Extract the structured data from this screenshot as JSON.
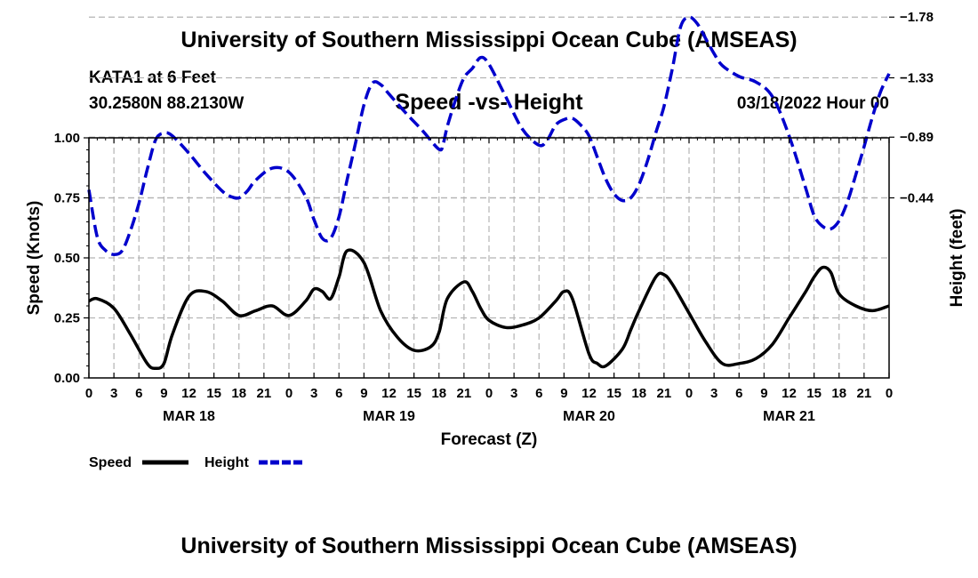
{
  "header": {
    "title_top": "University of Southern Mississippi Ocean Cube (AMSEAS)",
    "title_bottom": "University of Southern Mississippi Ocean Cube (AMSEAS)",
    "station": "KATA1 at 6 Feet",
    "coords": "30.2580N  88.2130W",
    "chart_title": "Speed -vs- Height",
    "date": "03/18/2022 Hour 00"
  },
  "chart_data": {
    "type": "line",
    "title": "Speed -vs- Height",
    "xlabel": "Forecast (Z)",
    "ylabel": "Speed (Knots)",
    "y2label": "Height (feet)",
    "x_range_hours": [
      0,
      96
    ],
    "x_tick_labels": [
      "0",
      "3",
      "6",
      "9",
      "12",
      "15",
      "18",
      "21",
      "0",
      "3",
      "6",
      "9",
      "12",
      "15",
      "18",
      "21",
      "0",
      "3",
      "6",
      "9",
      "12",
      "15",
      "18",
      "21",
      "0",
      "3",
      "6",
      "9",
      "12",
      "15",
      "18",
      "21",
      "0"
    ],
    "day_labels": [
      {
        "hour": 12,
        "label": "MAR 18"
      },
      {
        "hour": 36,
        "label": "MAR 19"
      },
      {
        "hour": 60,
        "label": "MAR 20"
      },
      {
        "hour": 84,
        "label": "MAR 21"
      }
    ],
    "ylim": [
      0,
      1.0
    ],
    "y_ticks": [
      "0.00",
      "0.25",
      "0.50",
      "0.75",
      "1.00"
    ],
    "y_tick_values": [
      0,
      0.25,
      0.5,
      0.75,
      1.0
    ],
    "y2_ticks": [
      {
        "value": -0.44,
        "label": "-0.44"
      },
      {
        "value": -0.89,
        "label": "-0.89"
      },
      {
        "value": -1.33,
        "label": "-1.33"
      },
      {
        "value": -1.78,
        "label": "-1.78"
      }
    ],
    "y2_map": {
      "speed_at_y2_minus_0_44": 0.75,
      "speed_per_foot": -0.5618
    },
    "grid": true,
    "legend": {
      "position": "bottom-left",
      "items": [
        "Speed",
        "Height"
      ]
    },
    "series": [
      {
        "name": "Speed",
        "axis": "left",
        "color": "#000000",
        "dash": "solid",
        "x": [
          0,
          1,
          3,
          5,
          7,
          8,
          9,
          10,
          12,
          14,
          16,
          18,
          20,
          22,
          24,
          26,
          27,
          28,
          29,
          30,
          31,
          33,
          35,
          37,
          39,
          41,
          42,
          43,
          45,
          46,
          47,
          48,
          50,
          52,
          54,
          56,
          57,
          58,
          60,
          61,
          62,
          64,
          65,
          66,
          68,
          69,
          70,
          72,
          74,
          76,
          78,
          80,
          82,
          84,
          86,
          87,
          88,
          89,
          90,
          92,
          94,
          96
        ],
        "values": [
          0.32,
          0.33,
          0.29,
          0.18,
          0.06,
          0.04,
          0.06,
          0.18,
          0.34,
          0.36,
          0.32,
          0.26,
          0.28,
          0.3,
          0.26,
          0.32,
          0.37,
          0.36,
          0.33,
          0.42,
          0.53,
          0.48,
          0.28,
          0.17,
          0.115,
          0.13,
          0.19,
          0.33,
          0.4,
          0.36,
          0.29,
          0.24,
          0.21,
          0.22,
          0.25,
          0.32,
          0.36,
          0.33,
          0.1,
          0.06,
          0.05,
          0.12,
          0.2,
          0.28,
          0.42,
          0.43,
          0.39,
          0.27,
          0.15,
          0.06,
          0.06,
          0.08,
          0.14,
          0.25,
          0.36,
          0.42,
          0.46,
          0.44,
          0.35,
          0.3,
          0.28,
          0.3
        ]
      },
      {
        "name": "Height",
        "axis": "right",
        "color": "#0000cc",
        "dash": "dashed",
        "x": [
          0,
          1,
          2,
          3,
          4,
          5,
          6,
          7,
          8,
          9,
          10,
          12,
          14,
          16,
          17,
          18,
          19,
          20,
          22,
          24,
          26,
          27,
          28,
          29,
          30,
          31,
          32,
          33,
          34,
          35,
          36,
          38,
          40,
          42,
          42.5,
          43,
          44,
          45,
          46,
          47,
          48,
          50,
          52,
          54,
          55,
          56,
          57,
          58,
          59,
          60,
          61,
          62,
          63,
          64,
          65,
          66,
          67,
          68,
          69,
          70,
          71,
          72,
          73,
          74,
          75,
          76,
          78,
          80,
          82,
          84,
          86,
          87,
          88,
          89,
          90,
          91,
          92,
          93,
          94,
          95,
          96
        ],
        "values": [
          -0.5,
          -0.15,
          -0.05,
          -0.02,
          -0.05,
          -0.2,
          -0.4,
          -0.65,
          -0.87,
          -0.92,
          -0.9,
          -0.77,
          -0.62,
          -0.49,
          -0.45,
          -0.44,
          -0.49,
          -0.57,
          -0.66,
          -0.63,
          -0.45,
          -0.28,
          -0.14,
          -0.14,
          -0.3,
          -0.58,
          -0.85,
          -1.13,
          -1.29,
          -1.28,
          -1.21,
          -1.07,
          -0.94,
          -0.8,
          -0.84,
          -0.97,
          -1.17,
          -1.33,
          -1.4,
          -1.48,
          -1.43,
          -1.19,
          -0.95,
          -0.83,
          -0.87,
          -0.98,
          -1.02,
          -1.03,
          -0.98,
          -0.9,
          -0.74,
          -0.58,
          -0.47,
          -0.42,
          -0.44,
          -0.54,
          -0.71,
          -0.92,
          -1.12,
          -1.4,
          -1.71,
          -1.78,
          -1.73,
          -1.62,
          -1.51,
          -1.42,
          -1.34,
          -1.3,
          -1.19,
          -0.9,
          -0.51,
          -0.31,
          -0.23,
          -0.21,
          -0.27,
          -0.41,
          -0.61,
          -0.82,
          -1.04,
          -1.23,
          -1.36
        ]
      }
    ]
  }
}
